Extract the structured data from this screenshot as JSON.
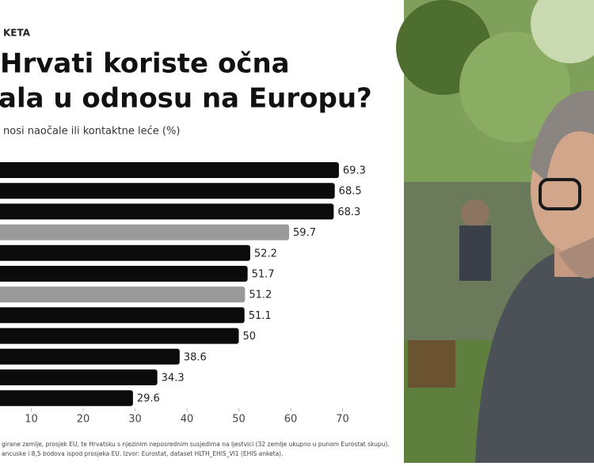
{
  "chart_data": {
    "type": "barh",
    "kicker": "KETA",
    "title_lines": [
      "Hrvati koriste očna",
      "ala u odnosu na Europu?"
    ],
    "subtitle": "nosi naočale ili kontaktne leće (%)",
    "values": [
      69.3,
      68.5,
      68.3,
      59.7,
      52.2,
      51.7,
      51.2,
      51.1,
      50,
      38.6,
      34.3,
      29.6
    ],
    "colors": [
      "#0b0b0b",
      "#0b0b0b",
      "#0b0b0b",
      "#9a9a9a",
      "#0b0b0b",
      "#0b0b0b",
      "#9a9a9a",
      "#0b0b0b",
      "#0b0b0b",
      "#0b0b0b",
      "#0b0b0b",
      "#0b0b0b"
    ],
    "xlim": [
      0,
      80
    ],
    "xticks": [
      10,
      20,
      30,
      40,
      50,
      60,
      70
    ],
    "footnotes": [
      "girane zemlje, prosjek EU, te Hrvatsku s njezinim neposrednim susjedima na ljestvici (32 zemlje ukupno u punom Eurostat skupu).",
      "ancuske i 8,5 bodova ispod prosjeka EU. Izvor: Eurostat, dataset HLTH_EHIS_VI1 (EHIS anketa)."
    ]
  }
}
